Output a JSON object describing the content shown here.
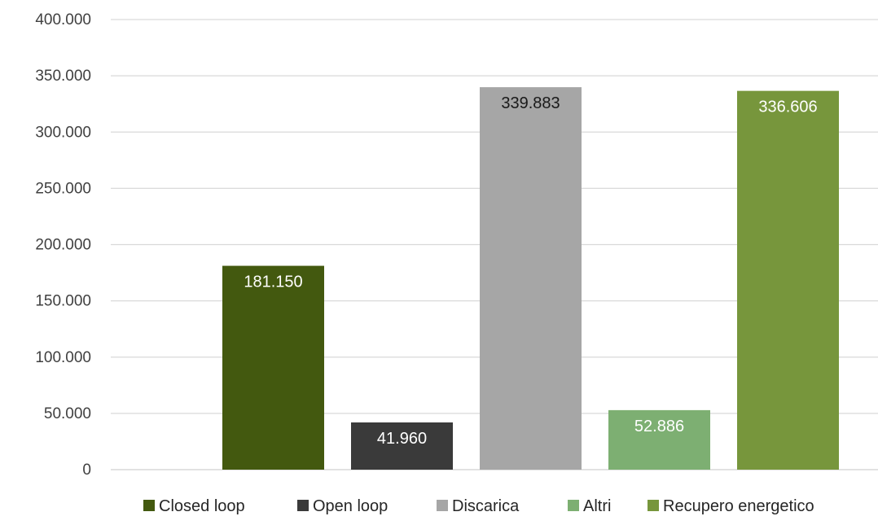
{
  "chart_data": {
    "type": "bar",
    "title": "",
    "xlabel": "",
    "ylabel": "",
    "ylim": [
      0,
      400000
    ],
    "yticks": [
      0,
      50000,
      100000,
      150000,
      200000,
      250000,
      300000,
      350000,
      400000
    ],
    "ytick_labels": [
      "0",
      "50.000",
      "100.000",
      "150.000",
      "200.000",
      "250.000",
      "300.000",
      "350.000",
      "400.000"
    ],
    "grid": "horizontal",
    "legend_position": "bottom",
    "series": [
      {
        "name": "Closed loop",
        "value": 181150,
        "label": "181.150",
        "color": "#43590f",
        "label_color": "#ffffff"
      },
      {
        "name": "Open loop",
        "value": 41960,
        "label": "41.960",
        "color": "#3a3a3a",
        "label_color": "#ffffff"
      },
      {
        "name": "Discarica",
        "value": 339883,
        "label": "339.883",
        "color": "#a6a6a6",
        "label_color": "#1a1a1a"
      },
      {
        "name": "Altri",
        "value": 52886,
        "label": "52.886",
        "color": "#7daf72",
        "label_color": "#ffffff"
      },
      {
        "name": "Recupero energetico",
        "value": 336606,
        "label": "336.606",
        "color": "#77963c",
        "label_color": "#ffffff"
      }
    ]
  }
}
